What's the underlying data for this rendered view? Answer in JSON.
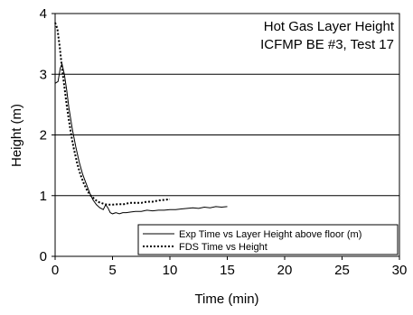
{
  "chart_data": {
    "type": "line",
    "title": "Hot Gas Layer Height",
    "subtitle": "ICFMP BE #3, Test 17",
    "xlabel": "Time (min)",
    "ylabel": "Height (m)",
    "xlim": [
      0,
      30
    ],
    "ylim": [
      0,
      4
    ],
    "xticks": [
      0,
      5,
      10,
      15,
      20,
      25,
      30
    ],
    "yticks": [
      0,
      1,
      2,
      3,
      4
    ],
    "grid": "horizontal",
    "legend_position": "bottom-right",
    "series": [
      {
        "name": "Exp Time vs Layer Height above floor (m)",
        "style": "solid",
        "color": "#000000",
        "x": [
          0,
          0.25,
          0.45,
          0.6,
          0.8,
          1.0,
          1.2,
          1.5,
          1.8,
          2.1,
          2.4,
          2.7,
          3.0,
          3.3,
          3.6,
          3.9,
          4.2,
          4.4,
          4.6,
          4.8,
          5.0,
          5.3,
          5.6,
          5.9,
          6.2,
          6.6,
          7.0,
          7.5,
          8.0,
          8.5,
          9.0,
          9.5,
          10.0,
          10.5,
          11.0,
          11.5,
          12.0,
          12.5,
          13.0,
          13.5,
          14.0,
          14.5,
          15.0
        ],
        "y": [
          2.85,
          2.88,
          3.1,
          3.17,
          3.0,
          2.75,
          2.45,
          2.1,
          1.8,
          1.55,
          1.35,
          1.2,
          1.05,
          0.93,
          0.85,
          0.8,
          0.77,
          0.85,
          0.8,
          0.72,
          0.7,
          0.72,
          0.7,
          0.72,
          0.72,
          0.73,
          0.74,
          0.74,
          0.76,
          0.75,
          0.76,
          0.76,
          0.77,
          0.77,
          0.78,
          0.79,
          0.8,
          0.79,
          0.81,
          0.8,
          0.82,
          0.81,
          0.82
        ]
      },
      {
        "name": "FDS Time vs  Height",
        "style": "dotted",
        "color": "#000000",
        "x": [
          0,
          0.2,
          0.4,
          0.6,
          0.8,
          1.0,
          1.2,
          1.4,
          1.6,
          1.9,
          2.2,
          2.5,
          2.8,
          3.1,
          3.4,
          3.7,
          4.0,
          4.3,
          4.6,
          5.0,
          5.5,
          6.0,
          6.5,
          7.0,
          7.5,
          8.0,
          8.5,
          9.0,
          9.5,
          10.0
        ],
        "y": [
          3.85,
          3.75,
          3.45,
          3.1,
          2.8,
          2.5,
          2.25,
          2.0,
          1.8,
          1.55,
          1.35,
          1.2,
          1.08,
          1.0,
          0.95,
          0.9,
          0.88,
          0.86,
          0.85,
          0.85,
          0.86,
          0.86,
          0.88,
          0.88,
          0.88,
          0.9,
          0.9,
          0.92,
          0.93,
          0.94
        ]
      }
    ]
  }
}
